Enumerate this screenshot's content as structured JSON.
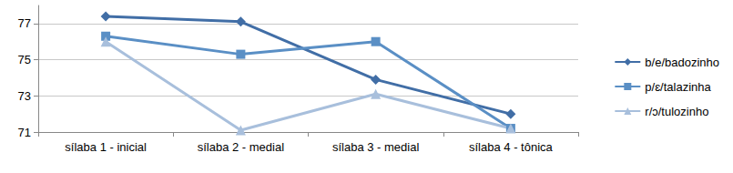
{
  "chart_data": {
    "type": "line",
    "categories": [
      "sílaba 1 - inicial",
      "sílaba 2 - medial",
      "sílaba 3 - medial",
      "sílaba 4 - tônica"
    ],
    "series": [
      {
        "name": "b/e/badozinho",
        "color": "#416ea6",
        "marker": "diamond",
        "line_style": "solid",
        "values": [
          77.4,
          77.1,
          73.9,
          72.0
        ]
      },
      {
        "name": "p/ɛ/talazinha",
        "color": "#5a8fc5",
        "marker": "square",
        "line_style": "solid",
        "values": [
          76.3,
          75.3,
          76.0,
          71.2
        ]
      },
      {
        "name": "r/ɔ/tulozinho",
        "color": "#a8bfdc",
        "marker": "triangle",
        "line_style": "solid",
        "values": [
          76.0,
          71.1,
          73.1,
          71.2
        ]
      }
    ],
    "ylim": [
      71,
      78
    ],
    "yticks": [
      71,
      73,
      75,
      77
    ],
    "grid": true,
    "legend": "right"
  }
}
